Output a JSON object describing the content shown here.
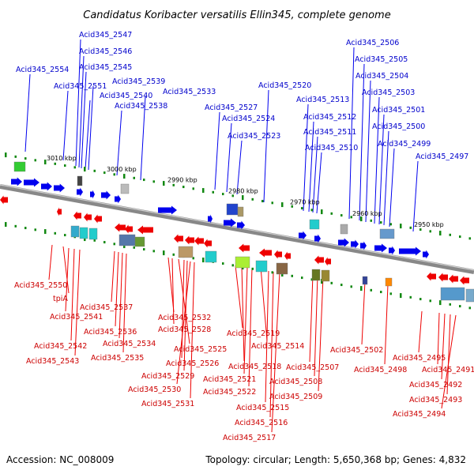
{
  "title": "Candidatus Koribacter versatilis Ellin345, complete genome",
  "footer": {
    "accession": "Accession: NC_008009",
    "summary": "Topology: circular; Length: 5,650,368 bp; Genes: 4,832"
  },
  "colors": {
    "forward": "#0000ee",
    "reverse": "#ee0000",
    "backbone": "#888888",
    "dots": "#118811",
    "label_forward": "#0000cc",
    "label_reverse": "#cc0000"
  },
  "ticks": [
    "3010 kbp",
    "3000 kbp",
    "2990 kbp",
    "2980 kbp",
    "2970 kbp",
    "2960 kbp",
    "2950 kbp"
  ],
  "forward_labels": [
    "Acid345_2554",
    "Acid345_2551",
    "Acid345_2547",
    "Acid345_2546",
    "Acid345_2545",
    "Acid345_2540",
    "Acid345_2539",
    "Acid345_2538",
    "Acid345_2533",
    "Acid345_2527",
    "Acid345_2524",
    "Acid345_2523",
    "Acid345_2520",
    "Acid345_2513",
    "Acid345_2512",
    "Acid345_2511",
    "Acid345_2510",
    "Acid345_2506",
    "Acid345_2505",
    "Acid345_2504",
    "Acid345_2503",
    "Acid345_2501",
    "Acid345_2500",
    "Acid345_2499",
    "Acid345_2497"
  ],
  "reverse_labels": [
    "Acid345_2550",
    "tpiA",
    "Acid345_2541",
    "Acid345_2542",
    "Acid345_2543",
    "Acid345_2537",
    "Acid345_2536",
    "Acid345_2534",
    "Acid345_2535",
    "Acid345_2532",
    "Acid345_2528",
    "Acid345_2525",
    "Acid345_2526",
    "Acid345_2529",
    "Acid345_2530",
    "Acid345_2531",
    "Acid345_2519",
    "Acid345_2514",
    "Acid345_2518",
    "Acid345_2521",
    "Acid345_2522",
    "Acid345_2515",
    "Acid345_2516",
    "Acid345_2517",
    "Acid345_2507",
    "Acid345_2508",
    "Acid345_2509",
    "Acid345_2502",
    "Acid345_2498",
    "Acid345_2495",
    "Acid345_2491",
    "Acid345_2492",
    "Acid345_2493",
    "Acid345_2494"
  ]
}
